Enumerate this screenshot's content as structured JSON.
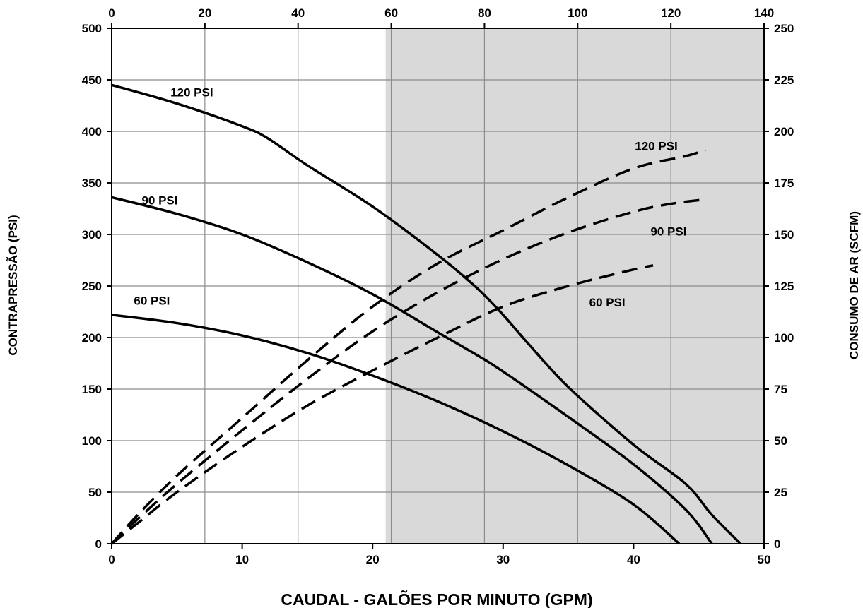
{
  "chart_data": {
    "type": "line",
    "title": "",
    "xlabel": "CAUDAL - GALÕES POR MINUTO (GPM)",
    "x_secondary_label": "",
    "ylabel": "CONTRAPRESSÃO (PSI)",
    "y2label": "CONSUMO DE AR (SCFM)",
    "xlim": [
      0,
      50
    ],
    "x_secondary_lim": [
      0,
      140
    ],
    "ylim": [
      0,
      500
    ],
    "y2lim": [
      0,
      250
    ],
    "x_ticks": [
      0,
      10,
      20,
      30,
      40,
      50
    ],
    "x_secondary_ticks": [
      0,
      20,
      40,
      60,
      80,
      100,
      120,
      140
    ],
    "y_ticks": [
      0,
      50,
      100,
      150,
      200,
      250,
      300,
      350,
      400,
      450,
      500
    ],
    "y2_ticks": [
      0,
      25,
      50,
      75,
      100,
      125,
      150,
      175,
      200,
      225,
      250
    ],
    "grid": true,
    "shaded_region_x": [
      21,
      50
    ],
    "colors": {
      "line": "#000000",
      "shade": "#d9d9d9",
      "grid": "#8c8c8c",
      "background": "#ffffff"
    },
    "series": [
      {
        "name": "120 PSI",
        "kind": "pressure",
        "axis": "left",
        "style": "solid",
        "x": [
          0,
          5,
          10,
          12,
          15,
          20,
          25,
          28,
          30,
          32,
          35,
          40,
          44,
          46,
          48.2
        ],
        "y": [
          445,
          427,
          405,
          393,
          367,
          327,
          280,
          248,
          222,
          193,
          152,
          96,
          58,
          28,
          0
        ]
      },
      {
        "name": "90 PSI",
        "kind": "pressure",
        "axis": "left",
        "style": "solid",
        "x": [
          0,
          5,
          10,
          15,
          20,
          25,
          28,
          30,
          35,
          40,
          44,
          46
        ],
        "y": [
          336,
          320,
          300,
          273,
          242,
          205,
          183,
          167,
          123,
          77,
          33,
          0
        ]
      },
      {
        "name": "60 PSI",
        "kind": "pressure",
        "axis": "left",
        "style": "solid",
        "x": [
          0,
          5,
          10,
          15,
          20,
          25,
          30,
          35,
          40,
          43.5
        ],
        "y": [
          222,
          214,
          202,
          185,
          163,
          138,
          109,
          76,
          38,
          0
        ]
      },
      {
        "name": "120 PSI",
        "kind": "air",
        "axis": "right",
        "style": "dashed",
        "x": [
          0,
          2,
          5,
          10,
          15,
          20,
          25,
          30,
          35,
          40,
          44,
          45.5
        ],
        "y2": [
          0,
          14,
          33,
          61,
          89,
          115,
          136,
          152,
          168,
          182,
          188,
          191
        ]
      },
      {
        "name": "90 PSI",
        "kind": "air",
        "axis": "right",
        "style": "dashed",
        "x": [
          0,
          2,
          5,
          10,
          15,
          20,
          25,
          30,
          35,
          40,
          43,
          45.5
        ],
        "y2": [
          0,
          12,
          29,
          55,
          80,
          103,
          122,
          138,
          151,
          161,
          165,
          167
        ]
      },
      {
        "name": "60 PSI",
        "kind": "air",
        "axis": "right",
        "style": "dashed",
        "x": [
          0,
          2,
          5,
          10,
          15,
          20,
          25,
          30,
          35,
          40,
          41.5
        ],
        "y2": [
          0,
          10,
          25,
          47,
          67,
          84,
          100,
          115,
          125,
          133,
          135
        ]
      }
    ],
    "annotations": [
      {
        "text": "120 PSI",
        "x": 4.5,
        "y": 434
      },
      {
        "text": "90 PSI",
        "x": 2.3,
        "y": 329
      },
      {
        "text": "60 PSI",
        "x": 1.7,
        "y": 232
      },
      {
        "text": "120 PSI",
        "x": 40.1,
        "y": 382
      },
      {
        "text": "90 PSI",
        "x": 41.3,
        "y": 299
      },
      {
        "text": "60 PSI",
        "x": 36.6,
        "y": 230
      }
    ]
  }
}
